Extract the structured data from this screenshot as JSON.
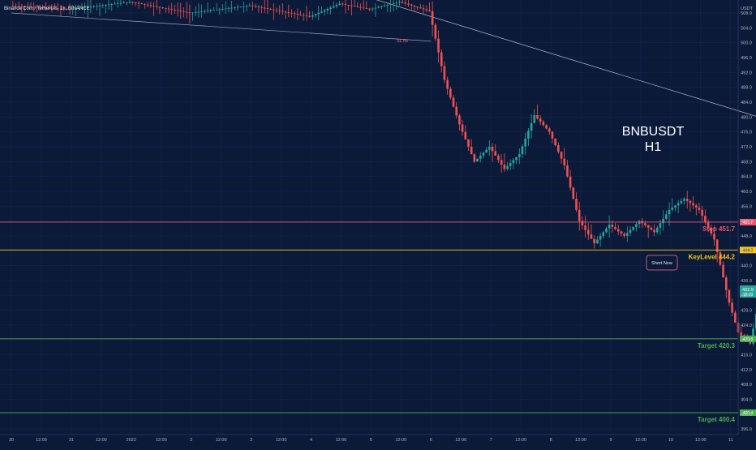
{
  "header": {
    "symbol_line": "Binance Coin / TetherUS, 1h, BINANCE",
    "currency": "USDT"
  },
  "overlay": {
    "symbol": "BNBUSDT",
    "timeframe": "H1"
  },
  "annotations": {
    "sl_hit": "SL hit",
    "short_now": "Short Now"
  },
  "levels": [
    {
      "name": "stop",
      "label": "Stop 451.7",
      "price": 451.7,
      "tag": "451.7",
      "color": "#f2546c"
    },
    {
      "name": "keylevel",
      "label": "KeyLevel 444.2",
      "price": 444.2,
      "tag": "444.2",
      "color": "#f5c518"
    },
    {
      "name": "target-1",
      "label": "Target 420.3",
      "price": 420.3,
      "tag": "420.3",
      "color": "#4caf50"
    },
    {
      "name": "target-2",
      "label": "Target 400.4",
      "price": 400.4,
      "tag": "400.4",
      "color": "#4caf50"
    }
  ],
  "current_price": {
    "value": "432.9",
    "countdown": "18:59",
    "price": 432.9
  },
  "colors": {
    "background": "#0c1a3a",
    "up": "#26a69a",
    "down": "#ef5350",
    "axis_text": "#b2b5be"
  },
  "chart_data": {
    "type": "candlestick",
    "title": "Binance Coin / TetherUS, 1h, BINANCE",
    "y_axis_ticks": [
      396.0,
      400.0,
      404.0,
      408.0,
      412.0,
      416.0,
      420.0,
      424.0,
      428.0,
      432.0,
      436.0,
      440.0,
      444.0,
      448.0,
      452.0,
      456.0,
      460.0,
      464.0,
      468.0,
      472.0,
      476.0,
      480.0,
      484.0,
      488.0,
      492.0,
      496.0,
      500.0,
      504.0,
      508.0
    ],
    "x_axis_ticks": [
      "30",
      "12:00",
      "31",
      "12:00",
      "2022",
      "12:00",
      "2",
      "12:00",
      "3",
      "12:00",
      "4",
      "12:00",
      "5",
      "12:00",
      "6",
      "12:00",
      "7",
      "12:00",
      "8",
      "12:00",
      "9",
      "12:00",
      "10",
      "12:00",
      "11"
    ],
    "ylim": [
      394.5,
      511.5
    ],
    "trendlines": [
      {
        "name": "upper-descending",
        "from": {
          "t": 12.0,
          "p": 512.0
        },
        "to": {
          "t": 52.0,
          "p": 413.0
        }
      },
      {
        "name": "sl-line",
        "from": {
          "t": 0.0,
          "p": 508.0
        },
        "to": {
          "t": 14.0,
          "p": 500.4
        }
      }
    ],
    "price_path": [
      {
        "t": 0.0,
        "p": 510.0
      },
      {
        "t": 2.0,
        "p": 509.0
      },
      {
        "t": 4.0,
        "p": 511.0
      },
      {
        "t": 6.0,
        "p": 508.0
      },
      {
        "t": 8.0,
        "p": 510.0
      },
      {
        "t": 10.0,
        "p": 507.0
      },
      {
        "t": 11.0,
        "p": 510.5
      },
      {
        "t": 12.0,
        "p": 509.0
      },
      {
        "t": 13.0,
        "p": 511.0
      },
      {
        "t": 14.0,
        "p": 508.5
      },
      {
        "t": 14.5,
        "p": 490.0
      },
      {
        "t": 15.0,
        "p": 478.0
      },
      {
        "t": 15.5,
        "p": 468.0
      },
      {
        "t": 16.0,
        "p": 472.0
      },
      {
        "t": 16.5,
        "p": 466.0
      },
      {
        "t": 17.0,
        "p": 470.0
      },
      {
        "t": 17.5,
        "p": 480.5
      },
      {
        "t": 18.0,
        "p": 476.0
      },
      {
        "t": 18.5,
        "p": 467.0
      },
      {
        "t": 19.0,
        "p": 452.0
      },
      {
        "t": 19.5,
        "p": 446.0
      },
      {
        "t": 20.0,
        "p": 451.0
      },
      {
        "t": 20.5,
        "p": 448.0
      },
      {
        "t": 21.0,
        "p": 452.0
      },
      {
        "t": 21.5,
        "p": 449.0
      },
      {
        "t": 22.0,
        "p": 455.0
      },
      {
        "t": 22.5,
        "p": 458.0
      },
      {
        "t": 23.0,
        "p": 455.0
      },
      {
        "t": 23.5,
        "p": 447.0
      },
      {
        "t": 24.0,
        "p": 430.0
      },
      {
        "t": 24.3,
        "p": 422.0
      },
      {
        "t": 24.7,
        "p": 419.0
      },
      {
        "t": 25.0,
        "p": 431.0
      },
      {
        "t": 25.5,
        "p": 434.0
      },
      {
        "t": 26.0,
        "p": 436.5
      },
      {
        "t": 26.5,
        "p": 433.0
      },
      {
        "t": 27.0,
        "p": 435.0
      },
      {
        "t": 27.5,
        "p": 432.5
      },
      {
        "t": 28.0,
        "p": 434.0
      },
      {
        "t": 28.3,
        "p": 432.9
      }
    ]
  }
}
